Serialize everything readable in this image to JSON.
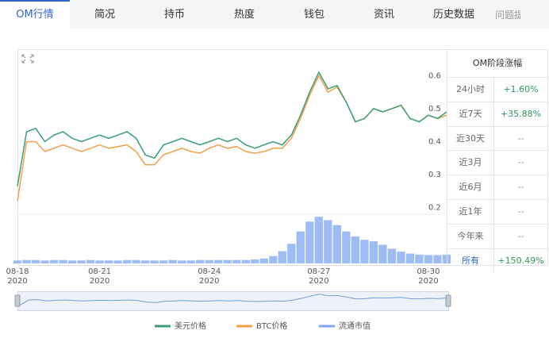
{
  "tabs": [
    "OM行情",
    "简况",
    "持币",
    "热度",
    "钱包",
    "资讯",
    "历史数据",
    "问题提"
  ],
  "side_table": {
    "title": "OM阶段涨幅",
    "rows": [
      [
        "24小时",
        "+1.60%"
      ],
      [
        "近7天",
        "+35.88%"
      ],
      [
        "近30天",
        "--"
      ],
      [
        "近3月",
        "--"
      ],
      [
        "近6月",
        "--"
      ],
      [
        "近1年",
        "--"
      ],
      [
        "今年来",
        "--"
      ],
      [
        "所有",
        "+150.49%"
      ]
    ]
  },
  "chart_data": {
    "type": "line",
    "categories": [
      "08-18 2020",
      null,
      null,
      null,
      null,
      null,
      null,
      null,
      null,
      "08-21 2020",
      null,
      null,
      null,
      null,
      null,
      null,
      null,
      null,
      null,
      null,
      null,
      "08-24 2020",
      null,
      null,
      null,
      null,
      null,
      null,
      null,
      null,
      null,
      null,
      null,
      "08-27 2020",
      null,
      null,
      null,
      null,
      null,
      null,
      null,
      null,
      null,
      null,
      null,
      "08-30 2020",
      null,
      null
    ],
    "series": [
      {
        "name": "美元价格",
        "color": "#3a9e74",
        "values": [
          0.265,
          0.43,
          0.44,
          0.4,
          0.42,
          0.43,
          0.41,
          0.4,
          0.41,
          0.42,
          0.41,
          0.42,
          0.43,
          0.41,
          0.36,
          0.35,
          0.39,
          0.4,
          0.41,
          0.4,
          0.39,
          0.4,
          0.41,
          0.4,
          0.41,
          0.39,
          0.38,
          0.39,
          0.4,
          0.39,
          0.42,
          0.48,
          0.55,
          0.61,
          0.56,
          0.57,
          0.52,
          0.46,
          0.47,
          0.5,
          0.49,
          0.5,
          0.51,
          0.47,
          0.46,
          0.48,
          0.47,
          0.49
        ]
      },
      {
        "name": "BTC价格",
        "color": "#f0a04b",
        "values": [
          0.22,
          0.4,
          0.4,
          0.37,
          0.38,
          0.39,
          0.38,
          0.37,
          0.38,
          0.39,
          0.38,
          0.385,
          0.39,
          0.37,
          0.33,
          0.33,
          0.36,
          0.37,
          0.38,
          0.37,
          0.365,
          0.38,
          0.39,
          0.38,
          0.385,
          0.37,
          0.365,
          0.37,
          0.38,
          0.38,
          0.41,
          0.47,
          0.54,
          0.6,
          0.55,
          0.565,
          0.52,
          0.46,
          0.47,
          0.5,
          0.49,
          0.5,
          0.51,
          0.47,
          0.46,
          0.48,
          0.47,
          0.48
        ]
      },
      {
        "name": "流通市值",
        "color": "#7ea6f0",
        "axis": "y2",
        "values": [
          6,
          7,
          7,
          6,
          7,
          7,
          6,
          6,
          7,
          6,
          6,
          6,
          7,
          7,
          6,
          6,
          6,
          7,
          6,
          6,
          7,
          7,
          7,
          7,
          7,
          7,
          8,
          10,
          15,
          25,
          40,
          65,
          85,
          95,
          88,
          78,
          65,
          55,
          48,
          45,
          38,
          30,
          24,
          20,
          18,
          17,
          17,
          18
        ]
      }
    ],
    "ylim": [
      0.18,
      0.68
    ],
    "yticks": [
      0.2,
      0.3,
      0.4,
      0.5,
      0.6
    ],
    "y2lim": [
      0,
      100
    ],
    "grid": false
  }
}
